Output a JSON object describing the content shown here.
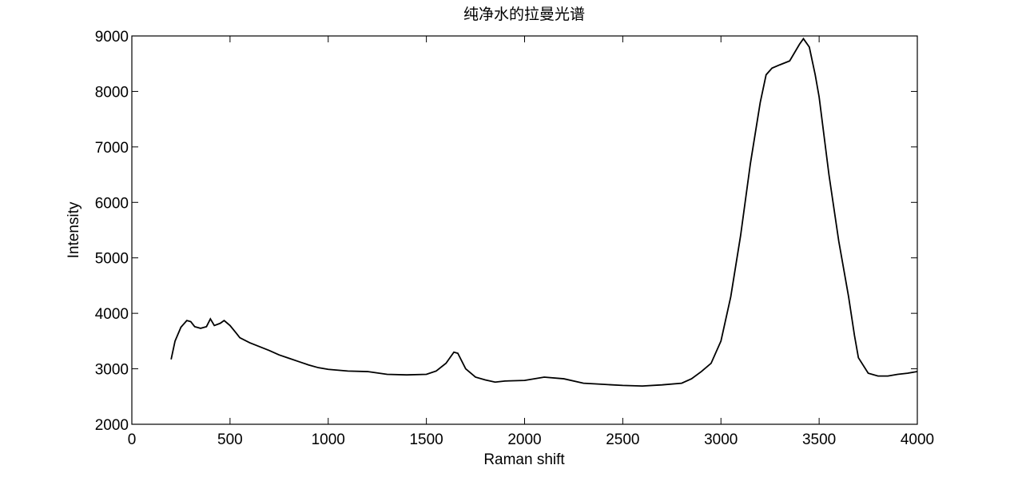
{
  "chart_data": {
    "type": "line",
    "title": "纯净水的拉曼光谱",
    "xlabel": "Raman shift",
    "ylabel": "Intensity",
    "x": [
      200,
      220,
      250,
      280,
      300,
      320,
      350,
      380,
      400,
      420,
      450,
      470,
      500,
      530,
      550,
      600,
      650,
      700,
      750,
      800,
      850,
      900,
      950,
      1000,
      1100,
      1200,
      1300,
      1400,
      1500,
      1550,
      1600,
      1640,
      1660,
      1700,
      1750,
      1800,
      1850,
      1900,
      2000,
      2100,
      2200,
      2300,
      2400,
      2500,
      2600,
      2700,
      2800,
      2850,
      2900,
      2950,
      3000,
      3050,
      3100,
      3150,
      3200,
      3230,
      3260,
      3300,
      3350,
      3400,
      3420,
      3450,
      3480,
      3500,
      3550,
      3600,
      3650,
      3680,
      3700,
      3750,
      3800,
      3850,
      3900,
      3950,
      4000
    ],
    "series": [
      {
        "name": "Intensity",
        "color": "#000000",
        "values": [
          3170,
          3500,
          3750,
          3870,
          3850,
          3760,
          3730,
          3760,
          3900,
          3780,
          3820,
          3870,
          3780,
          3650,
          3560,
          3470,
          3400,
          3330,
          3250,
          3190,
          3130,
          3070,
          3020,
          2990,
          2960,
          2950,
          2900,
          2890,
          2900,
          2960,
          3100,
          3300,
          3280,
          3000,
          2850,
          2800,
          2760,
          2780,
          2790,
          2850,
          2820,
          2740,
          2720,
          2700,
          2690,
          2710,
          2740,
          2820,
          2950,
          3100,
          3500,
          4300,
          5400,
          6700,
          7800,
          8300,
          8420,
          8480,
          8550,
          8850,
          8950,
          8800,
          8300,
          7900,
          6500,
          5300,
          4300,
          3600,
          3200,
          2920,
          2870,
          2870,
          2900,
          2920,
          2950
        ]
      }
    ],
    "xlim": [
      0,
      4000
    ],
    "xticks": [
      0,
      500,
      1000,
      1500,
      2000,
      2500,
      3000,
      3500,
      4000
    ],
    "ylim": [
      2000,
      9000
    ],
    "yticks": [
      2000,
      3000,
      4000,
      5000,
      6000,
      7000,
      8000,
      9000
    ]
  }
}
